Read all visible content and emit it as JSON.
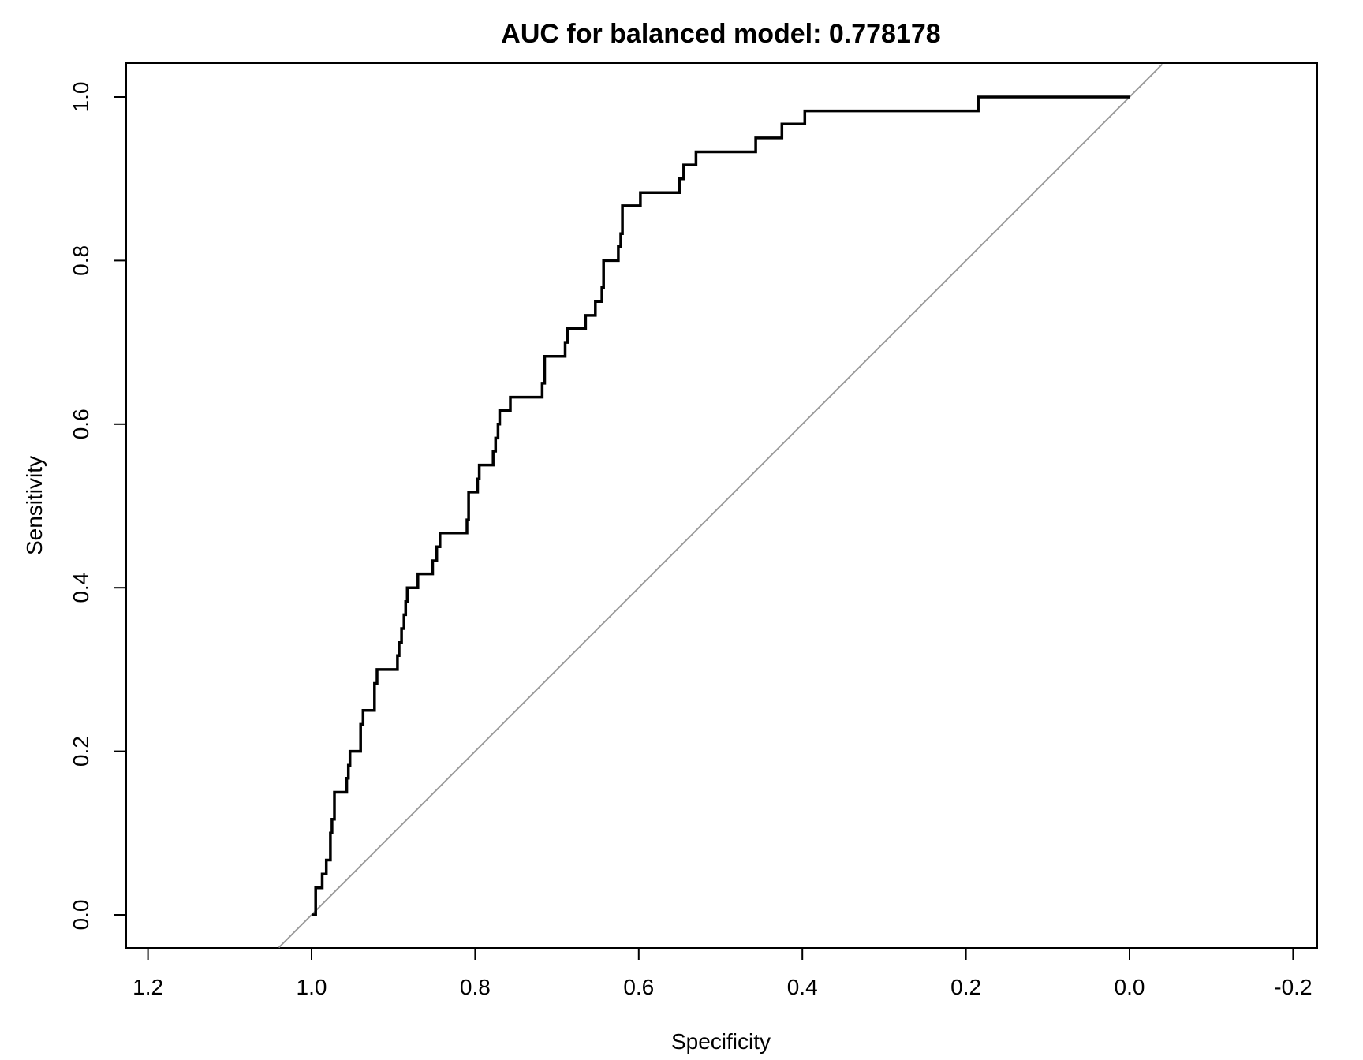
{
  "chart_data": {
    "type": "line",
    "title": "AUC for balanced model:  0.778178",
    "xlabel": "Specificity",
    "ylabel": "Sensitivity",
    "x_reversed": true,
    "xlim": [
      1.2,
      -0.2
    ],
    "ylim": [
      0.0,
      1.0
    ],
    "x_ticks": [
      1.2,
      1.0,
      0.8,
      0.6,
      0.4,
      0.2,
      0.0,
      -0.2
    ],
    "x_tick_labels": [
      "1.2",
      "1.0",
      "0.8",
      "0.6",
      "0.4",
      "0.2",
      "0.0",
      "-0.2"
    ],
    "y_ticks": [
      0.0,
      0.2,
      0.4,
      0.6,
      0.8,
      1.0
    ],
    "y_tick_labels": [
      "0.0",
      "0.2",
      "0.4",
      "0.6",
      "0.8",
      "1.0"
    ],
    "grid": false,
    "line_color": "#000000",
    "reference_color": "#9a9a9a",
    "reference_line": {
      "x": [
        1.04,
        -0.04
      ],
      "y": [
        -0.04,
        1.04
      ]
    },
    "series": [
      {
        "x": [
          1.0,
          0.995,
          0.995,
          0.987,
          0.987,
          0.982,
          0.982,
          0.977,
          0.977,
          0.975,
          0.975,
          0.972,
          0.972,
          0.957,
          0.957,
          0.955,
          0.955,
          0.953,
          0.953,
          0.94,
          0.94,
          0.937,
          0.937,
          0.923,
          0.923,
          0.92,
          0.92,
          0.895,
          0.895,
          0.893,
          0.893,
          0.89,
          0.89,
          0.887,
          0.887,
          0.885,
          0.885,
          0.883,
          0.883,
          0.87,
          0.87,
          0.852,
          0.852,
          0.847,
          0.847,
          0.843,
          0.843,
          0.81,
          0.81,
          0.808,
          0.808,
          0.797,
          0.797,
          0.795,
          0.795,
          0.778,
          0.778,
          0.775,
          0.775,
          0.772,
          0.772,
          0.77,
          0.77,
          0.757,
          0.757,
          0.718,
          0.718,
          0.715,
          0.715,
          0.69,
          0.69,
          0.687,
          0.687,
          0.665,
          0.665,
          0.653,
          0.653,
          0.645,
          0.645,
          0.643,
          0.643,
          0.625,
          0.625,
          0.622,
          0.622,
          0.62,
          0.62,
          0.598,
          0.598,
          0.55,
          0.55,
          0.545,
          0.545,
          0.53,
          0.53,
          0.457,
          0.457,
          0.425,
          0.425,
          0.397,
          0.397,
          0.185,
          0.185,
          0.0
        ],
        "y": [
          0.0,
          0.0,
          0.033,
          0.033,
          0.05,
          0.05,
          0.067,
          0.067,
          0.1,
          0.1,
          0.117,
          0.117,
          0.15,
          0.15,
          0.167,
          0.167,
          0.183,
          0.183,
          0.2,
          0.2,
          0.233,
          0.233,
          0.25,
          0.25,
          0.283,
          0.283,
          0.3,
          0.3,
          0.317,
          0.317,
          0.333,
          0.333,
          0.35,
          0.35,
          0.367,
          0.367,
          0.383,
          0.383,
          0.4,
          0.4,
          0.417,
          0.417,
          0.433,
          0.433,
          0.45,
          0.45,
          0.467,
          0.467,
          0.483,
          0.483,
          0.517,
          0.517,
          0.533,
          0.533,
          0.55,
          0.55,
          0.567,
          0.567,
          0.583,
          0.583,
          0.6,
          0.6,
          0.617,
          0.617,
          0.633,
          0.633,
          0.65,
          0.65,
          0.683,
          0.683,
          0.7,
          0.7,
          0.717,
          0.717,
          0.733,
          0.733,
          0.75,
          0.75,
          0.767,
          0.767,
          0.8,
          0.8,
          0.817,
          0.817,
          0.833,
          0.833,
          0.867,
          0.867,
          0.883,
          0.883,
          0.9,
          0.9,
          0.917,
          0.917,
          0.933,
          0.933,
          0.95,
          0.95,
          0.967,
          0.967,
          0.983,
          0.983,
          1.0,
          1.0
        ]
      }
    ]
  }
}
